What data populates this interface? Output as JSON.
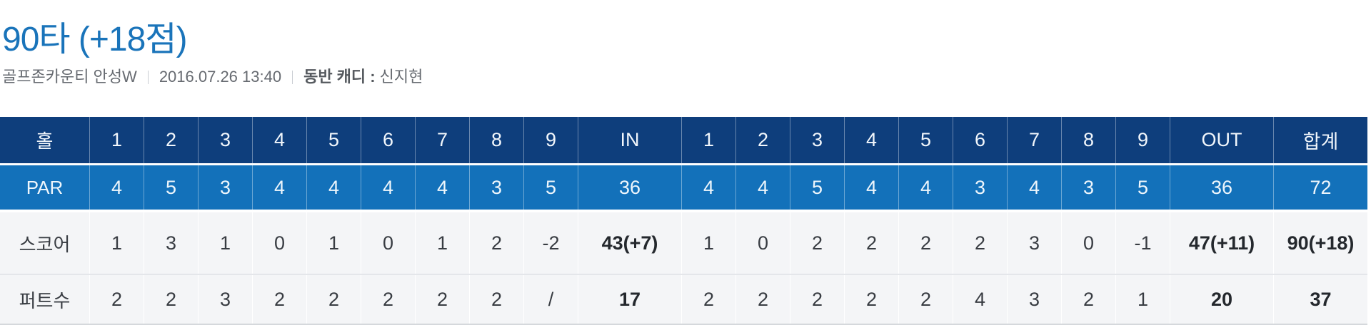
{
  "header": {
    "title": "90타 (+18점)",
    "course": "골프존카운티 안성W",
    "datetime": "2016.07.26 13:40",
    "caddie_label": "동반 캐디 :",
    "caddie_name": "신지현"
  },
  "colors": {
    "title_blue": "#1a74ba",
    "hole_row_navy": "#0e3e7c",
    "par_row_blue": "#1371ba",
    "data_row_gray": "#f4f5f7",
    "data_text": "#383c42"
  },
  "scorecard": {
    "columns": [
      "홀",
      "1",
      "2",
      "3",
      "4",
      "5",
      "6",
      "7",
      "8",
      "9",
      "IN",
      "1",
      "2",
      "3",
      "4",
      "5",
      "6",
      "7",
      "8",
      "9",
      "OUT",
      "합계"
    ],
    "bold_value_indexes": [
      9,
      19,
      20
    ],
    "rows": [
      {
        "label": "PAR",
        "type": "par",
        "bold_totals": false,
        "values": [
          "4",
          "5",
          "3",
          "4",
          "4",
          "4",
          "4",
          "3",
          "5",
          "36",
          "4",
          "4",
          "5",
          "4",
          "4",
          "3",
          "4",
          "3",
          "5",
          "36",
          "72"
        ]
      },
      {
        "label": "스코어",
        "type": "score",
        "bold_totals": true,
        "values": [
          "1",
          "3",
          "1",
          "0",
          "1",
          "0",
          "1",
          "2",
          "-2",
          "43(+7)",
          "1",
          "0",
          "2",
          "2",
          "2",
          "2",
          "3",
          "0",
          "-1",
          "47(+11)",
          "90(+18)"
        ]
      },
      {
        "label": "퍼트수",
        "type": "putts",
        "bold_totals": true,
        "values": [
          "2",
          "2",
          "3",
          "2",
          "2",
          "2",
          "2",
          "2",
          "/",
          "17",
          "2",
          "2",
          "2",
          "2",
          "2",
          "4",
          "3",
          "2",
          "1",
          "20",
          "37"
        ]
      }
    ]
  }
}
